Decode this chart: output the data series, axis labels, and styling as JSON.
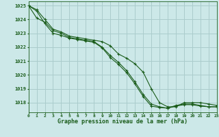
{
  "bg_color": "#cce8e8",
  "grid_color": "#aacccc",
  "line_color": "#1a5c1a",
  "xlabel": "Graphe pression niveau de la mer (hPa)",
  "xlim": [
    0,
    23
  ],
  "ylim": [
    1017.3,
    1025.3
  ],
  "yticks": [
    1018,
    1019,
    1020,
    1021,
    1022,
    1023,
    1024,
    1025
  ],
  "xticks": [
    0,
    1,
    2,
    3,
    4,
    5,
    6,
    7,
    8,
    9,
    10,
    11,
    12,
    13,
    14,
    15,
    16,
    17,
    18,
    19,
    20,
    21,
    22,
    23
  ],
  "series": [
    [
      1025.0,
      1024.7,
      1024.0,
      1023.3,
      1023.1,
      1022.8,
      1022.7,
      1022.6,
      1022.5,
      1022.4,
      1022.1,
      1021.5,
      1021.2,
      1020.8,
      1020.2,
      1019.0,
      1018.0,
      1017.7,
      1017.7,
      1018.0,
      1018.0,
      1018.0,
      1017.9,
      1017.8
    ],
    [
      1025.0,
      1024.1,
      1023.8,
      1023.2,
      1023.0,
      1022.7,
      1022.6,
      1022.5,
      1022.4,
      1022.0,
      1021.4,
      1020.9,
      1020.3,
      1019.5,
      1018.6,
      1017.9,
      1017.7,
      1017.6,
      1017.75,
      1017.85,
      1017.85,
      1017.75,
      1017.7,
      1017.7
    ],
    [
      1025.0,
      1024.6,
      1023.7,
      1023.0,
      1022.85,
      1022.65,
      1022.55,
      1022.45,
      1022.35,
      1021.95,
      1021.25,
      1020.75,
      1020.15,
      1019.35,
      1018.45,
      1017.75,
      1017.65,
      1017.6,
      1017.8,
      1017.9,
      1017.9,
      1017.8,
      1017.7,
      1017.7
    ]
  ]
}
